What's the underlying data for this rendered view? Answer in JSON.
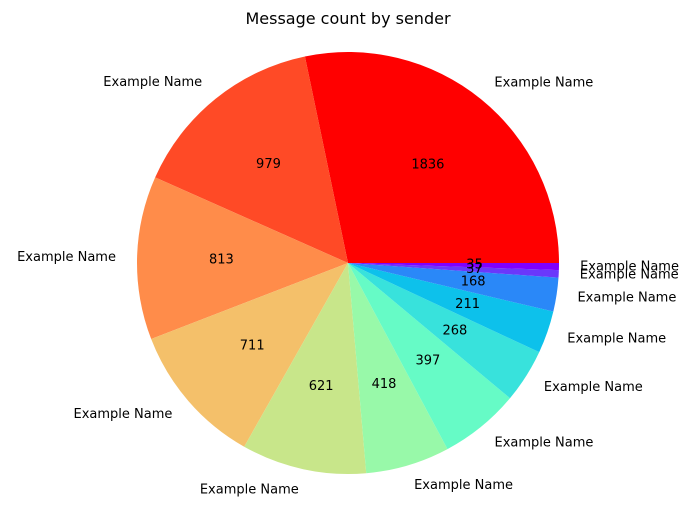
{
  "chart_data": {
    "type": "pie",
    "title": "Message count by sender",
    "start_angle_deg": 0,
    "direction": "counterclockwise",
    "slices": [
      {
        "label": "Example Name",
        "value": 1836,
        "color": "#ff0000"
      },
      {
        "label": "Example Name",
        "value": 979,
        "color": "#ff4a26"
      },
      {
        "label": "Example Name",
        "value": 813,
        "color": "#ff8c4a"
      },
      {
        "label": "Example Name",
        "value": 711,
        "color": "#f4c06a"
      },
      {
        "label": "Example Name",
        "value": 621,
        "color": "#c8e68a"
      },
      {
        "label": "Example Name",
        "value": 418,
        "color": "#98f9a9"
      },
      {
        "label": "Example Name",
        "value": 397,
        "color": "#66fbc6"
      },
      {
        "label": "Example Name",
        "value": 268,
        "color": "#38e2dc"
      },
      {
        "label": "Example Name",
        "value": 211,
        "color": "#0dc1eb"
      },
      {
        "label": "Example Name",
        "value": 168,
        "color": "#2a88f8"
      },
      {
        "label": "Example Name",
        "value": 37,
        "color": "#6a38fb"
      },
      {
        "label": "Example Name",
        "value": 35,
        "color": "#8000ff"
      }
    ]
  }
}
